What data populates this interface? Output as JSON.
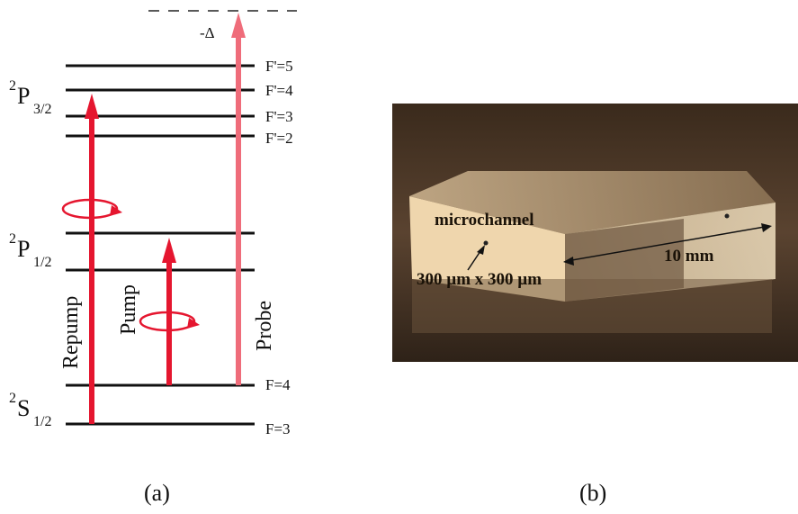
{
  "panel_a": {
    "detuning": "-Δ",
    "levels": [
      "F'=5",
      "F'=4",
      "F'=3",
      "F'=2",
      "F=4",
      "F=3"
    ],
    "terms": [
      {
        "sup": "2",
        "main": "P",
        "sub": "3/2"
      },
      {
        "sup": "2",
        "main": "P",
        "sub": "1/2"
      },
      {
        "sup": "2",
        "main": "S",
        "sub": "1/2"
      }
    ],
    "beams": [
      "Repump",
      "Pump",
      "Probe"
    ],
    "caption": "(a)"
  },
  "panel_b": {
    "labels": [
      "microchannel",
      "300 µm x 300 µm",
      "10 mm"
    ],
    "caption": "(b)"
  }
}
